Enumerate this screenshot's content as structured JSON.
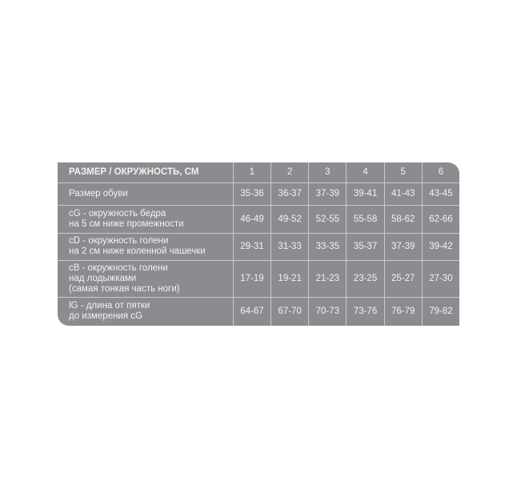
{
  "table": {
    "header": {
      "label": "РАЗМЕР / ОКРУЖНОСТЬ, СМ",
      "sizes": [
        "1",
        "2",
        "3",
        "4",
        "5",
        "6"
      ]
    },
    "rows": [
      {
        "label": "Размер обуви",
        "values": [
          "35-36",
          "36-37",
          "37-39",
          "39-41",
          "41-43",
          "43-45"
        ]
      },
      {
        "label": "cG - окружность бедра\nна 5 см ниже промежности",
        "values": [
          "46-49",
          "49-52",
          "52-55",
          "55-58",
          "58-62",
          "62-66"
        ]
      },
      {
        "label": "cD - окружность  голени\nна 2 см ниже коленной чашечки",
        "values": [
          "29-31",
          "31-33",
          "33-35",
          "35-37",
          "37-39",
          "39-42"
        ]
      },
      {
        "label": "cB - окружность  голени\nнад лодыжками\n(самая тонкая часть ноги)",
        "values": [
          "17-19",
          "19-21",
          "21-23",
          "23-25",
          "25-27",
          "27-30"
        ]
      },
      {
        "label": "lG - длина от пятки\nдо измерения cG",
        "values": [
          "64-67",
          "67-70",
          "70-73",
          "73-76",
          "76-79",
          "79-82"
        ]
      }
    ]
  },
  "colors": {
    "table_bg": "#8b8c90",
    "grid": "#c9cacc",
    "text": "#f2f2f2"
  }
}
